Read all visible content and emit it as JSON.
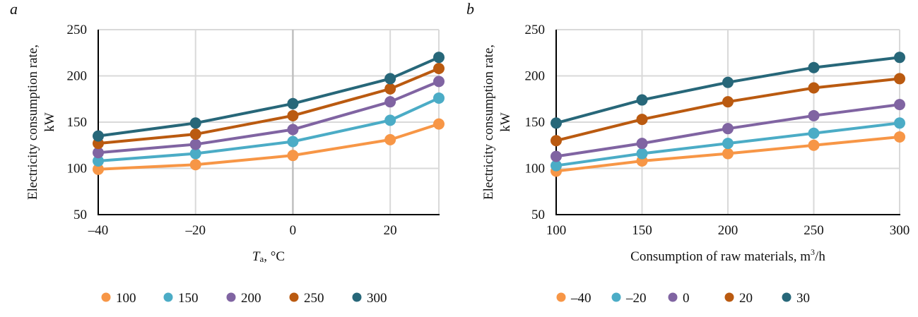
{
  "chart_data": [
    {
      "type": "line",
      "panel_label": "a",
      "title": "",
      "xlabel_main": "T",
      "xlabel_sub": "a",
      "xlabel_rest": ", °C",
      "ylabel_line1": "Electricity consumption rate,",
      "ylabel_line2": "kW",
      "x": [
        -40,
        -20,
        0,
        20,
        30
      ],
      "xlim": [
        -40,
        30
      ],
      "x_ticks": [
        -40,
        -20,
        0,
        20
      ],
      "x_tick_labels": [
        "–40",
        "–20",
        "0",
        "20"
      ],
      "ylim": [
        50,
        250
      ],
      "y_ticks": [
        50,
        100,
        150,
        200,
        250
      ],
      "y_tick_labels": [
        "50",
        "100",
        "150",
        "200",
        "250"
      ],
      "grid": true,
      "legend_position": "bottom",
      "series": [
        {
          "name": "100",
          "color": "#F79646",
          "values": [
            99,
            104,
            114,
            131,
            148
          ]
        },
        {
          "name": "150",
          "color": "#4BACC6",
          "values": [
            108,
            116,
            129,
            152,
            176
          ]
        },
        {
          "name": "200",
          "color": "#8064A2",
          "values": [
            117,
            126,
            142,
            172,
            194
          ]
        },
        {
          "name": "250",
          "color": "#BA5A10",
          "values": [
            127,
            137,
            157,
            186,
            208
          ]
        },
        {
          "name": "300",
          "color": "#276779",
          "values": [
            135,
            149,
            170,
            197,
            220
          ]
        }
      ]
    },
    {
      "type": "line",
      "panel_label": "b",
      "title": "",
      "xlabel_main": "Consumption of raw materials, m",
      "xlabel_sup": "3",
      "xlabel_rest": "/h",
      "ylabel_line1": "Electricity consumption rate,",
      "ylabel_line2": "kW",
      "x": [
        100,
        150,
        200,
        250,
        300
      ],
      "xlim": [
        100,
        300
      ],
      "x_ticks": [
        100,
        150,
        200,
        250,
        300
      ],
      "x_tick_labels": [
        "100",
        "150",
        "200",
        "250",
        "300"
      ],
      "ylim": [
        50,
        250
      ],
      "y_ticks": [
        50,
        100,
        150,
        200,
        250
      ],
      "y_tick_labels": [
        "50",
        "100",
        "150",
        "200",
        "250"
      ],
      "grid": true,
      "legend_position": "bottom",
      "series": [
        {
          "name": "–40",
          "color": "#F79646",
          "values": [
            97,
            108,
            116,
            125,
            134
          ]
        },
        {
          "name": "–20",
          "color": "#4BACC6",
          "values": [
            103,
            116,
            127,
            138,
            149
          ]
        },
        {
          "name": "0",
          "color": "#8064A2",
          "values": [
            113,
            127,
            143,
            157,
            169
          ]
        },
        {
          "name": "20",
          "color": "#BA5A10",
          "values": [
            130,
            153,
            172,
            187,
            197
          ]
        },
        {
          "name": "30",
          "color": "#276779",
          "values": [
            149,
            174,
            193,
            209,
            220
          ]
        }
      ]
    }
  ]
}
